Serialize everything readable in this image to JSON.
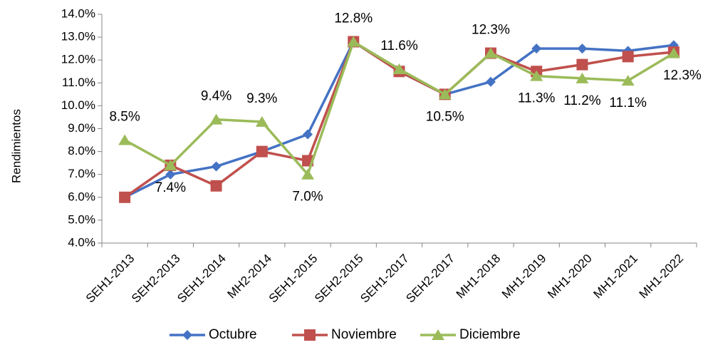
{
  "chart_data": {
    "type": "line",
    "y_axis_label": "Rendimientos",
    "categories": [
      "SEH1-2013",
      "SEH2-2013",
      "SEH1-2014",
      "MH2-2014",
      "SEH1-2015",
      "SEH2-2015",
      "SEH1-2017",
      "SEH2-2017",
      "MH1-2018",
      "MH1-2019",
      "MH1-2020",
      "MH1-2021",
      "MH1-2022"
    ],
    "series": [
      {
        "name": "Octubre",
        "color": "#4472c4",
        "marker": "diamond",
        "values": [
          6.0,
          7.0,
          7.35,
          8.0,
          8.75,
          12.8,
          11.5,
          10.5,
          11.05,
          12.5,
          12.5,
          12.4,
          12.65
        ]
      },
      {
        "name": "Noviembre",
        "color": "#c0504d",
        "marker": "square",
        "values": [
          6.0,
          7.4,
          6.5,
          8.0,
          7.6,
          12.8,
          11.5,
          10.5,
          12.3,
          11.5,
          11.8,
          12.15,
          12.35
        ]
      },
      {
        "name": "Diciembre",
        "color": "#9bbb59",
        "marker": "triangle",
        "values": [
          8.5,
          7.4,
          9.4,
          9.3,
          7.0,
          12.8,
          11.6,
          10.5,
          12.3,
          11.3,
          11.2,
          11.1,
          12.3
        ],
        "value_labels": [
          "8.5%",
          "7.4%",
          "9.4%",
          "9.3%",
          "7.0%",
          "12.8%",
          "11.6%",
          "10.5%",
          "12.3%",
          "11.3%",
          "11.2%",
          "11.1%",
          "12.3%"
        ]
      }
    ],
    "ylim": [
      4,
      14
    ],
    "yticks": [
      {
        "value": 4,
        "label": "4.0%"
      },
      {
        "value": 5,
        "label": "5.0%"
      },
      {
        "value": 6,
        "label": "6.0%"
      },
      {
        "value": 7,
        "label": "7.0%"
      },
      {
        "value": 8,
        "label": "8.0%"
      },
      {
        "value": 9,
        "label": "9.0%"
      },
      {
        "value": 10,
        "label": "10.0%"
      },
      {
        "value": 11,
        "label": "11.0%"
      },
      {
        "value": 12,
        "label": "12.0%"
      },
      {
        "value": 13,
        "label": "13.0%"
      },
      {
        "value": 14,
        "label": "14.0%"
      }
    ],
    "legend": "bottom"
  }
}
